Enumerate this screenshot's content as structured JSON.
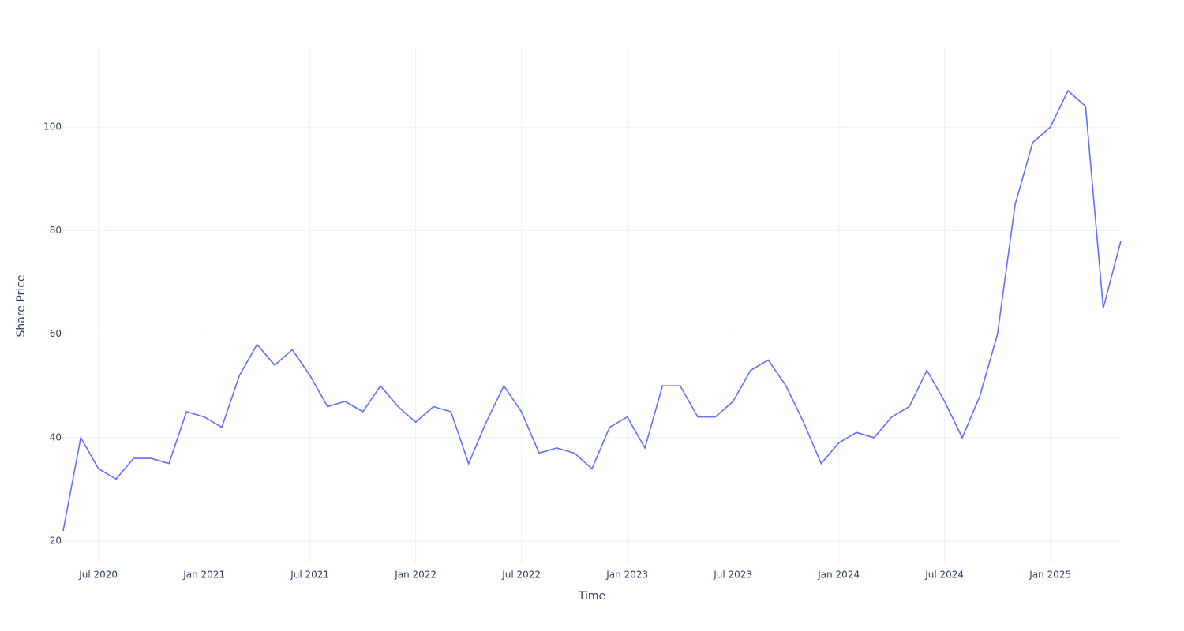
{
  "chart_data": {
    "type": "line",
    "xlabel": "Time",
    "ylabel": "Share Price",
    "x": [
      "2020-05",
      "2020-06",
      "2020-07",
      "2020-08",
      "2020-09",
      "2020-10",
      "2020-11",
      "2020-12",
      "2021-01",
      "2021-02",
      "2021-03",
      "2021-04",
      "2021-05",
      "2021-06",
      "2021-07",
      "2021-08",
      "2021-09",
      "2021-10",
      "2021-11",
      "2021-12",
      "2022-01",
      "2022-02",
      "2022-03",
      "2022-04",
      "2022-05",
      "2022-06",
      "2022-07",
      "2022-08",
      "2022-09",
      "2022-10",
      "2022-11",
      "2022-12",
      "2023-01",
      "2023-02",
      "2023-03",
      "2023-04",
      "2023-05",
      "2023-06",
      "2023-07",
      "2023-08",
      "2023-09",
      "2023-10",
      "2023-11",
      "2023-12",
      "2024-01",
      "2024-02",
      "2024-03",
      "2024-04",
      "2024-05",
      "2024-06",
      "2024-07",
      "2024-08",
      "2024-09",
      "2024-10",
      "2024-11",
      "2024-12",
      "2025-01",
      "2025-02",
      "2025-03",
      "2025-04",
      "2025-05"
    ],
    "series": [
      {
        "name": "Share Price",
        "color": "#636efa",
        "values": [
          22,
          40,
          34,
          32,
          36,
          36,
          35,
          45,
          44,
          42,
          52,
          58,
          54,
          57,
          52,
          46,
          47,
          45,
          50,
          46,
          43,
          46,
          45,
          35,
          43,
          50,
          45,
          37,
          38,
          37,
          34,
          42,
          44,
          38,
          50,
          50,
          44,
          44,
          47,
          53,
          55,
          50,
          43,
          35,
          39,
          41,
          40,
          44,
          46,
          53,
          47,
          40,
          48,
          60,
          85,
          97,
          100,
          107,
          104,
          65,
          78
        ]
      }
    ],
    "xlim": [
      "2020-05",
      "2025-05"
    ],
    "xticks": [
      {
        "value": "2020-07",
        "label": "Jul 2020"
      },
      {
        "value": "2021-01",
        "label": "Jan 2021"
      },
      {
        "value": "2021-07",
        "label": "Jul 2021"
      },
      {
        "value": "2022-01",
        "label": "Jan 2022"
      },
      {
        "value": "2022-07",
        "label": "Jul 2022"
      },
      {
        "value": "2023-01",
        "label": "Jan 2023"
      },
      {
        "value": "2023-07",
        "label": "Jul 2023"
      },
      {
        "value": "2024-01",
        "label": "Jan 2024"
      },
      {
        "value": "2024-07",
        "label": "Jul 2024"
      },
      {
        "value": "2025-01",
        "label": "Jan 2025"
      }
    ],
    "ylim": [
      15.6,
      115.4
    ],
    "yticks": [
      20,
      40,
      60,
      80,
      100
    ],
    "grid": true
  }
}
